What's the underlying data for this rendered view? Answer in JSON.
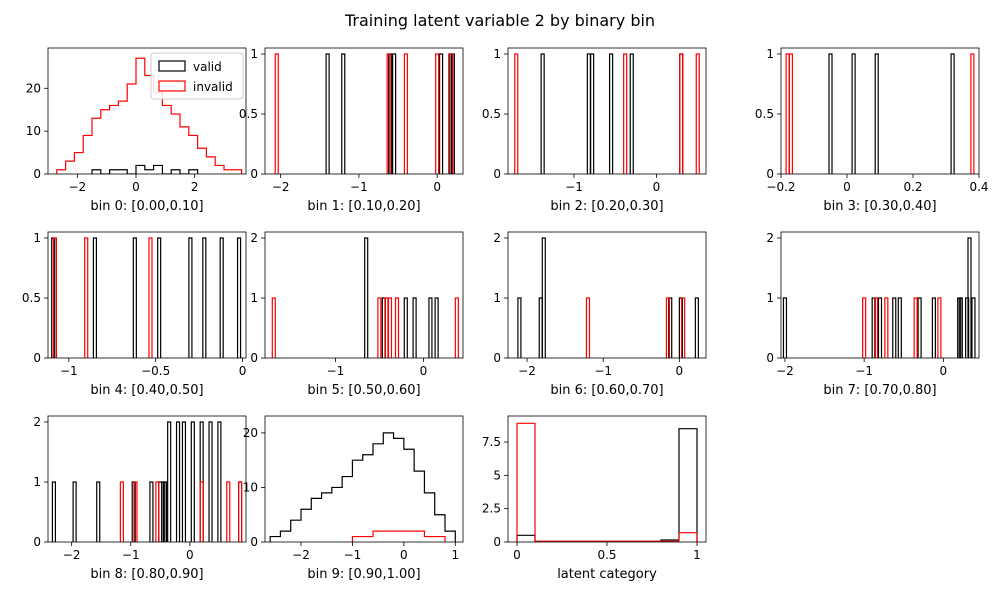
{
  "figure": {
    "title": "Training latent variable 2 by binary bin"
  },
  "chart_data": [
    {
      "type": "histogram",
      "xlabel": "bin 0: [0.00,0.10]",
      "xlim": [
        -3.0,
        3.75
      ],
      "ylim": [
        0,
        29.4
      ],
      "xticks": [
        -2,
        0,
        2
      ],
      "yticks": [
        0,
        10,
        20
      ],
      "legend": {
        "position": "top-right",
        "entries": [
          "valid",
          "invalid"
        ]
      },
      "series": [
        {
          "name": "valid",
          "color": "#000000",
          "edges": [
            -1.5,
            -1.2,
            -0.9,
            -0.6,
            -0.3,
            0.0,
            0.3,
            0.6,
            0.9,
            1.2,
            1.5,
            1.8,
            2.1
          ],
          "values": [
            1,
            0,
            1,
            1,
            0,
            2,
            1,
            2,
            0,
            1,
            0,
            1
          ]
        },
        {
          "name": "invalid",
          "color": "#ff0000",
          "edges": [
            -2.7,
            -2.4,
            -2.1,
            -1.8,
            -1.5,
            -1.2,
            -0.9,
            -0.6,
            -0.3,
            0.0,
            0.3,
            0.6,
            0.9,
            1.2,
            1.5,
            1.8,
            2.1,
            2.4,
            2.7,
            3.0,
            3.3,
            3.6
          ],
          "values": [
            1,
            3,
            5,
            9,
            13,
            15,
            16,
            17,
            21,
            27,
            23,
            19,
            16,
            14,
            11,
            9,
            6,
            4,
            2,
            1,
            1
          ]
        }
      ]
    },
    {
      "type": "histogram",
      "xlabel": "bin 1: [0.10,0.20]",
      "xlim": [
        -2.2,
        0.33
      ],
      "ylim": [
        0,
        1.05
      ],
      "xticks": [
        -2,
        -1,
        0
      ],
      "yticks": [
        0.0,
        0.5,
        1.0
      ],
      "series": [
        {
          "name": "valid",
          "color": "#000000",
          "points": [
            -1.4,
            -1.2,
            -0.6,
            -0.55,
            0.05,
            0.17,
            0.2
          ]
        },
        {
          "name": "invalid",
          "color": "#ff0000",
          "points": [
            -2.05,
            -0.62,
            -0.4,
            0.0,
            0.18
          ]
        }
      ]
    },
    {
      "type": "histogram",
      "xlabel": "bin 2: [0.20,0.30]",
      "xlim": [
        -1.8,
        0.6
      ],
      "ylim": [
        0,
        1.05
      ],
      "xticks": [
        -1,
        0
      ],
      "yticks": [
        0.0,
        0.5,
        1.0
      ],
      "series": [
        {
          "name": "valid",
          "color": "#000000",
          "points": [
            -1.38,
            -0.82,
            -0.78,
            -0.55,
            -0.3,
            0.3
          ]
        },
        {
          "name": "invalid",
          "color": "#ff0000",
          "points": [
            -1.7,
            -0.38,
            0.3,
            0.5
          ]
        }
      ]
    },
    {
      "type": "histogram",
      "xlabel": "bin 3: [0.30,0.40]",
      "xlim": [
        -0.2,
        0.4
      ],
      "ylim": [
        0,
        1.05
      ],
      "xticks": [
        -0.2,
        0.0,
        0.2,
        0.4
      ],
      "yticks": [
        0.0,
        0.5,
        1.0
      ],
      "series": [
        {
          "name": "valid",
          "color": "#000000",
          "points": [
            -0.05,
            0.02,
            0.09,
            0.32
          ]
        },
        {
          "name": "invalid",
          "color": "#ff0000",
          "points": [
            -0.18,
            -0.17,
            0.38
          ]
        }
      ]
    },
    {
      "type": "histogram",
      "xlabel": "bin 4: [0.40,0.50]",
      "xlim": [
        -1.12,
        0.02
      ],
      "ylim": [
        0,
        1.05
      ],
      "xticks": [
        -1.0,
        -0.5,
        0.0
      ],
      "yticks": [
        0.0,
        0.5,
        1.0
      ],
      "series": [
        {
          "name": "valid",
          "color": "#000000",
          "points": [
            -1.09,
            -0.85,
            -0.62,
            -0.48,
            -0.3,
            -0.22,
            -0.12,
            -0.02
          ]
        },
        {
          "name": "invalid",
          "color": "#ff0000",
          "points": [
            -1.08,
            -0.9,
            -0.53
          ]
        }
      ]
    },
    {
      "type": "histogram",
      "xlabel": "bin 5: [0.50,0.60]",
      "xlim": [
        -1.8,
        0.45
      ],
      "ylim": [
        0,
        2.1
      ],
      "xticks": [
        -1,
        0
      ],
      "yticks": [
        0,
        1,
        2
      ],
      "series": [
        {
          "name": "valid",
          "color": "#000000",
          "points": [
            -0.65,
            -0.65,
            -0.45,
            -0.2,
            -0.1,
            0.08,
            0.15
          ]
        },
        {
          "name": "invalid",
          "color": "#ff0000",
          "points": [
            -1.7,
            -0.5,
            -0.42,
            -0.38,
            -0.3,
            0.38
          ]
        }
      ]
    },
    {
      "type": "histogram",
      "xlabel": "bin 6: [0.60,0.70]",
      "xlim": [
        -2.25,
        0.35
      ],
      "ylim": [
        0,
        2.1
      ],
      "xticks": [
        -2,
        -1,
        0
      ],
      "yticks": [
        0,
        1,
        2
      ],
      "series": [
        {
          "name": "valid",
          "color": "#000000",
          "points": [
            -2.1,
            -1.82,
            -1.78,
            -1.78,
            -0.12,
            0.02,
            0.23
          ]
        },
        {
          "name": "invalid",
          "color": "#ff0000",
          "points": [
            -1.2,
            -0.15,
            0.05
          ]
        }
      ]
    },
    {
      "type": "histogram",
      "xlabel": "bin 7: [0.70,0.80]",
      "xlim": [
        -2.05,
        0.45
      ],
      "ylim": [
        0,
        2.1
      ],
      "xticks": [
        -2,
        -1,
        0
      ],
      "yticks": [
        0,
        1,
        2
      ],
      "series": [
        {
          "name": "valid",
          "color": "#000000",
          "points": [
            -2.0,
            -0.88,
            -0.8,
            -0.62,
            -0.55,
            -0.3,
            -0.12,
            0.2,
            0.22,
            0.3,
            0.33,
            0.33,
            0.38
          ]
        },
        {
          "name": "invalid",
          "color": "#ff0000",
          "points": [
            -1.0,
            -0.85,
            -0.72,
            -0.35,
            -0.05
          ]
        }
      ]
    },
    {
      "type": "histogram",
      "xlabel": "bin 8: [0.80,0.90]",
      "xlim": [
        -2.4,
        0.95
      ],
      "ylim": [
        0,
        2.1
      ],
      "xticks": [
        -2,
        -1,
        0
      ],
      "yticks": [
        0,
        1,
        2
      ],
      "series": [
        {
          "name": "valid",
          "color": "#000000",
          "points": [
            -2.3,
            -1.95,
            -1.55,
            -0.95,
            -0.65,
            -0.5,
            -0.45,
            -0.42,
            -0.35,
            -0.35,
            -0.2,
            -0.2,
            -0.1,
            -0.1,
            0.05,
            0.05,
            0.2,
            0.2,
            0.35,
            0.35,
            0.5,
            0.5,
            0.85
          ]
        },
        {
          "name": "invalid",
          "color": "#ff0000",
          "points": [
            -1.15,
            -0.92,
            -0.55,
            0.2,
            0.65,
            0.85
          ]
        }
      ]
    },
    {
      "type": "histogram",
      "xlabel": "bin 9: [0.90,1.00]",
      "xlim": [
        -2.7,
        1.15
      ],
      "ylim": [
        0,
        23.1
      ],
      "xticks": [
        -2,
        -1,
        0,
        1
      ],
      "yticks": [
        0,
        10,
        20
      ],
      "series": [
        {
          "name": "valid",
          "color": "#000000",
          "edges": [
            -2.6,
            -2.4,
            -2.2,
            -2.0,
            -1.8,
            -1.6,
            -1.4,
            -1.2,
            -1.0,
            -0.8,
            -0.6,
            -0.4,
            -0.2,
            0.0,
            0.2,
            0.4,
            0.6,
            0.8,
            1.0
          ],
          "values": [
            1,
            2,
            4,
            6,
            8,
            9,
            10,
            12,
            15,
            16,
            18,
            20,
            19,
            17,
            13,
            9,
            5,
            2
          ]
        },
        {
          "name": "invalid",
          "color": "#ff0000",
          "edges": [
            -1.0,
            -0.8,
            -0.6,
            -0.4,
            -0.2,
            0.0,
            0.2,
            0.4,
            0.6,
            0.8
          ],
          "values": [
            1,
            1,
            2,
            2,
            2,
            2,
            2,
            1,
            1
          ]
        }
      ]
    },
    {
      "type": "histogram",
      "xlabel": "latent category",
      "xlim": [
        -0.05,
        1.05
      ],
      "ylim": [
        0,
        9.45
      ],
      "xticks": [
        0.0,
        0.5,
        1.0
      ],
      "yticks": [
        0.0,
        2.5,
        5.0,
        7.5
      ],
      "series": [
        {
          "name": "valid",
          "color": "#000000",
          "edges": [
            0,
            0.1,
            0.2,
            0.3,
            0.4,
            0.5,
            0.6,
            0.7,
            0.8,
            0.9,
            1.0
          ],
          "values": [
            0.5,
            0.05,
            0.05,
            0.05,
            0.05,
            0.05,
            0.05,
            0.05,
            0.15,
            8.5
          ]
        },
        {
          "name": "invalid",
          "color": "#ff0000",
          "edges": [
            0,
            0.1,
            0.2,
            0.3,
            0.4,
            0.5,
            0.6,
            0.7,
            0.8,
            0.9,
            1.0
          ],
          "values": [
            8.9,
            0.05,
            0.05,
            0.05,
            0.05,
            0.05,
            0.05,
            0.05,
            0.05,
            0.7
          ]
        }
      ]
    }
  ]
}
